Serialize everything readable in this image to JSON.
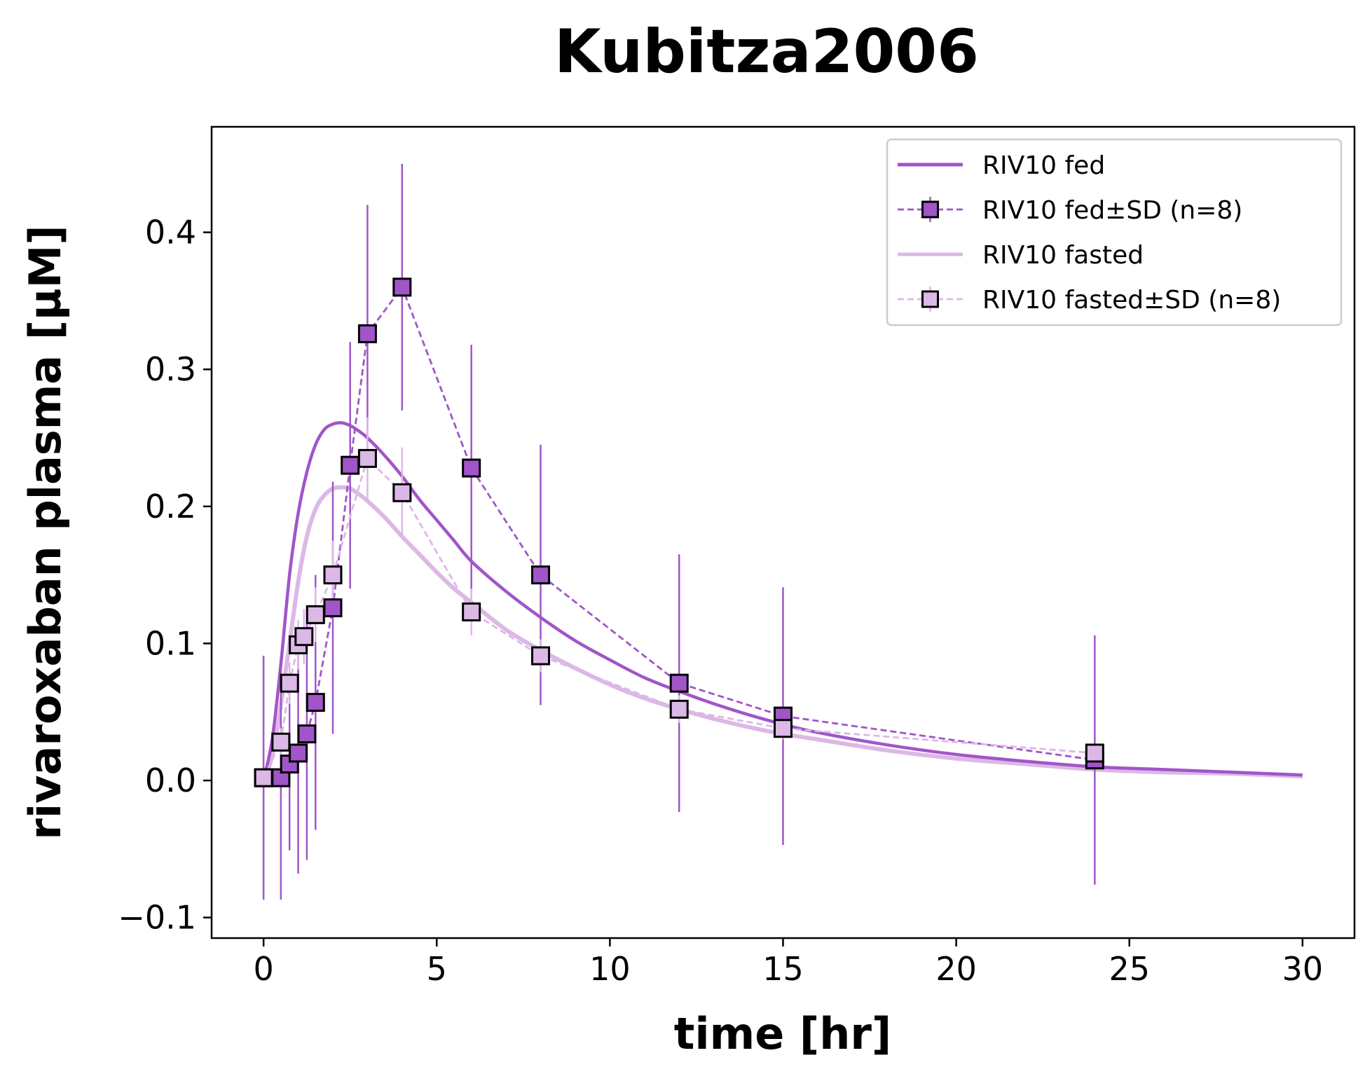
{
  "chart_data": {
    "type": "line",
    "title": "Kubitza2006",
    "xlabel": "time [hr]",
    "ylabel": "rivaroxaban plasma [µM]",
    "xlim": [
      -1.5,
      31.5
    ],
    "ylim": [
      -0.115,
      0.477
    ],
    "xticks": [
      0,
      5,
      10,
      15,
      20,
      25,
      30
    ],
    "xtick_labels": [
      "0",
      "5",
      "10",
      "15",
      "20",
      "25",
      "30"
    ],
    "yticks": [
      -0.1,
      0.0,
      0.1,
      0.2,
      0.3,
      0.4
    ],
    "ytick_labels": [
      "−0.1",
      "0.0",
      "0.1",
      "0.2",
      "0.3",
      "0.4"
    ],
    "grid": false,
    "legend_position": "top-right",
    "colors": {
      "fed": "#a155c8",
      "fasted": "#dcb8e6",
      "marker_edge": "#000000"
    },
    "simulations": [
      {
        "name": "RIV10 fed",
        "color": "#a155c8",
        "x": [
          0,
          0.25,
          0.5,
          0.75,
          1.0,
          1.25,
          1.5,
          1.75,
          2.0,
          2.25,
          2.5,
          2.75,
          3.0,
          3.5,
          4.0,
          4.5,
          5.0,
          5.5,
          6.0,
          7.0,
          8.0,
          9.0,
          10.0,
          11.0,
          12.0,
          13.0,
          14.0,
          15.0,
          16.0,
          18.0,
          20.0,
          22.0,
          24.0,
          26.0,
          28.0,
          30.0
        ],
        "y": [
          0.0,
          0.03,
          0.085,
          0.15,
          0.195,
          0.225,
          0.245,
          0.256,
          0.26,
          0.261,
          0.259,
          0.255,
          0.25,
          0.237,
          0.222,
          0.205,
          0.19,
          0.175,
          0.16,
          0.138,
          0.119,
          0.102,
          0.088,
          0.075,
          0.065,
          0.056,
          0.048,
          0.041,
          0.035,
          0.026,
          0.019,
          0.014,
          0.01,
          0.008,
          0.006,
          0.004
        ]
      },
      {
        "name": "RIV10 fasted",
        "color": "#dcb8e6",
        "x": [
          0,
          0.25,
          0.5,
          0.75,
          1.0,
          1.25,
          1.5,
          1.75,
          2.0,
          2.25,
          2.5,
          2.75,
          3.0,
          3.5,
          4.0,
          4.5,
          5.0,
          5.5,
          6.0,
          7.0,
          8.0,
          9.0,
          10.0,
          11.0,
          12.0,
          13.0,
          14.0,
          15.0,
          16.0,
          18.0,
          20.0,
          22.0,
          24.0,
          26.0,
          28.0,
          30.0
        ],
        "y": [
          0.0,
          0.018,
          0.055,
          0.1,
          0.145,
          0.178,
          0.198,
          0.208,
          0.213,
          0.214,
          0.213,
          0.209,
          0.204,
          0.192,
          0.178,
          0.165,
          0.152,
          0.14,
          0.13,
          0.11,
          0.095,
          0.082,
          0.07,
          0.06,
          0.052,
          0.045,
          0.039,
          0.034,
          0.03,
          0.022,
          0.016,
          0.012,
          0.008,
          0.006,
          0.005,
          0.003
        ]
      }
    ],
    "series": [
      {
        "name": "RIV10 fed±SD (n=8)",
        "color": "#a155c8",
        "x": [
          0,
          0.5,
          0.75,
          1.0,
          1.25,
          1.5,
          2.0,
          2.5,
          3.0,
          4.0,
          6.0,
          8.0,
          12.0,
          15.0,
          24.0
        ],
        "y": [
          0.002,
          0.002,
          0.012,
          0.02,
          0.034,
          0.057,
          0.126,
          0.23,
          0.326,
          0.36,
          0.228,
          0.15,
          0.071,
          0.047,
          0.015
        ],
        "sd": [
          0.089,
          0.089,
          0.063,
          0.088,
          0.092,
          0.093,
          0.092,
          0.09,
          0.094,
          0.09,
          0.09,
          0.095,
          0.094,
          0.094,
          0.091
        ]
      },
      {
        "name": "RIV10 fasted±SD (n=8)",
        "color": "#dcb8e6",
        "x": [
          0,
          0.5,
          0.75,
          1.0,
          1.167,
          1.5,
          2.0,
          3.0,
          4.0,
          6.0,
          8.0,
          12.0,
          15.0,
          24.0
        ],
        "y": [
          0.002,
          0.028,
          0.071,
          0.099,
          0.105,
          0.121,
          0.15,
          0.235,
          0.21,
          0.123,
          0.091,
          0.052,
          0.038,
          0.02
        ],
        "sd": [
          0.005,
          0.01,
          0.015,
          0.018,
          0.02,
          0.02,
          0.025,
          0.03,
          0.033,
          0.017,
          0.012,
          0.01,
          0.008,
          0.005
        ]
      }
    ],
    "legend": [
      {
        "label": "RIV10 fed",
        "kind": "solid",
        "color": "#a155c8"
      },
      {
        "label": "RIV10 fed±SD (n=8)",
        "kind": "dashed-marker",
        "color": "#a155c8"
      },
      {
        "label": "RIV10 fasted",
        "kind": "solid",
        "color": "#dcb8e6"
      },
      {
        "label": "RIV10 fasted±SD (n=8)",
        "kind": "dashed-marker",
        "color": "#dcb8e6"
      }
    ]
  }
}
